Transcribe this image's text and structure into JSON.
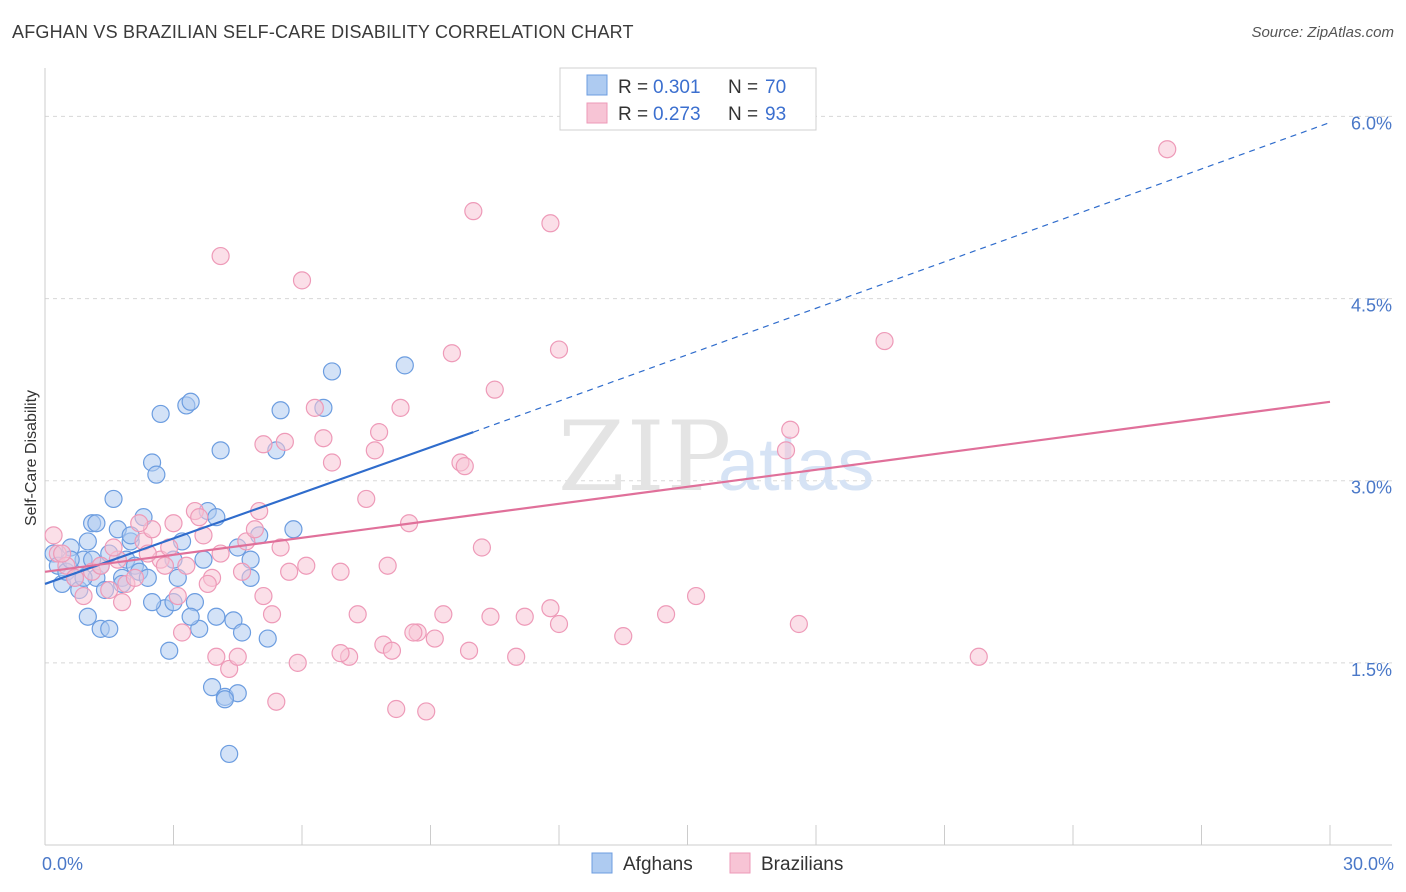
{
  "title": "AFGHAN VS BRAZILIAN SELF-CARE DISABILITY CORRELATION CHART",
  "source": "Source: ZipAtlas.com",
  "watermark": {
    "part1": "ZIP",
    "part2": "atlas"
  },
  "chart_data": {
    "type": "scatter",
    "title": "AFGHAN VS BRAZILIAN SELF-CARE DISABILITY CORRELATION CHART",
    "ylabel": "Self-Care Disability",
    "xlabel": "",
    "xlim": [
      0,
      30
    ],
    "ylim": [
      0,
      6.3
    ],
    "x_tick_labels": [
      {
        "value": 0,
        "label": "0.0%"
      },
      {
        "value": 30,
        "label": "30.0%"
      }
    ],
    "y_tick_labels": [
      {
        "value": 1.5,
        "label": "1.5%"
      },
      {
        "value": 3.0,
        "label": "3.0%"
      },
      {
        "value": 4.5,
        "label": "4.5%"
      },
      {
        "value": 6.0,
        "label": "6.0%"
      }
    ],
    "grid": true,
    "legend": {
      "position": "top-center",
      "entries": [
        {
          "r_label": "R =",
          "r_value": "0.301",
          "n_label": "N =",
          "n_value": "70"
        },
        {
          "r_label": "R =",
          "r_value": "0.273",
          "n_label": "N =",
          "n_value": "93"
        }
      ]
    },
    "series": [
      {
        "name": "Afghans",
        "color": "#6c9de0",
        "fill": "#aecbf1",
        "line_color": "#2f6ccc",
        "trend": {
          "x0": 0.0,
          "y0": 2.15,
          "x1": 10.0,
          "y1": 3.4,
          "dash_x1": 30.0,
          "dash_y1": 5.95
        },
        "points": [
          [
            0.2,
            2.4
          ],
          [
            0.3,
            2.3
          ],
          [
            0.4,
            2.15
          ],
          [
            0.5,
            2.25
          ],
          [
            0.6,
            2.45
          ],
          [
            0.7,
            2.2
          ],
          [
            0.8,
            2.1
          ],
          [
            0.9,
            2.35
          ],
          [
            1.0,
            2.5
          ],
          [
            1.1,
            2.65
          ],
          [
            1.2,
            2.2
          ],
          [
            1.3,
            2.3
          ],
          [
            1.4,
            2.1
          ],
          [
            1.5,
            2.4
          ],
          [
            1.6,
            2.85
          ],
          [
            1.7,
            2.6
          ],
          [
            1.8,
            2.2
          ],
          [
            1.9,
            2.35
          ],
          [
            2.0,
            2.5
          ],
          [
            2.1,
            2.3
          ],
          [
            2.2,
            2.25
          ],
          [
            2.3,
            2.7
          ],
          [
            2.4,
            2.2
          ],
          [
            2.5,
            3.15
          ],
          [
            2.6,
            3.05
          ],
          [
            2.7,
            3.55
          ],
          [
            2.8,
            1.95
          ],
          [
            2.9,
            1.6
          ],
          [
            3.0,
            2.35
          ],
          [
            3.1,
            2.2
          ],
          [
            3.2,
            2.5
          ],
          [
            3.3,
            3.62
          ],
          [
            3.4,
            3.65
          ],
          [
            3.5,
            2.0
          ],
          [
            3.6,
            1.78
          ],
          [
            3.7,
            2.35
          ],
          [
            3.8,
            2.75
          ],
          [
            3.9,
            1.3
          ],
          [
            4.0,
            2.7
          ],
          [
            4.1,
            3.25
          ],
          [
            4.2,
            1.22
          ],
          [
            4.3,
            0.75
          ],
          [
            4.4,
            1.85
          ],
          [
            4.5,
            1.25
          ],
          [
            4.6,
            1.75
          ],
          [
            4.8,
            2.35
          ],
          [
            5.0,
            2.55
          ],
          [
            4.2,
            1.2
          ],
          [
            4.0,
            1.88
          ],
          [
            3.4,
            1.88
          ],
          [
            1.3,
            1.78
          ],
          [
            1.2,
            2.65
          ],
          [
            1.5,
            1.78
          ],
          [
            1.0,
            1.88
          ],
          [
            0.6,
            2.35
          ],
          [
            5.5,
            3.58
          ],
          [
            5.4,
            3.25
          ],
          [
            5.8,
            2.6
          ],
          [
            6.5,
            3.6
          ],
          [
            6.7,
            3.9
          ],
          [
            8.4,
            3.95
          ],
          [
            4.8,
            2.2
          ],
          [
            5.2,
            1.7
          ],
          [
            1.8,
            2.15
          ],
          [
            2.5,
            2.0
          ],
          [
            2.0,
            2.55
          ],
          [
            0.9,
            2.2
          ],
          [
            1.1,
            2.35
          ],
          [
            3.0,
            2.0
          ],
          [
            4.5,
            2.45
          ]
        ]
      },
      {
        "name": "Brazilians",
        "color": "#ee9ab8",
        "fill": "#f7c4d5",
        "line_color": "#e0709a",
        "trend": {
          "x0": 0.0,
          "y0": 2.25,
          "x1": 30.0,
          "y1": 3.65
        },
        "points": [
          [
            0.2,
            2.55
          ],
          [
            0.3,
            2.4
          ],
          [
            0.5,
            2.3
          ],
          [
            0.7,
            2.2
          ],
          [
            0.9,
            2.05
          ],
          [
            1.1,
            2.25
          ],
          [
            1.3,
            2.3
          ],
          [
            1.5,
            2.1
          ],
          [
            1.7,
            2.35
          ],
          [
            1.9,
            2.15
          ],
          [
            2.1,
            2.2
          ],
          [
            2.3,
            2.5
          ],
          [
            2.5,
            2.6
          ],
          [
            2.7,
            2.35
          ],
          [
            2.9,
            2.45
          ],
          [
            3.1,
            2.05
          ],
          [
            3.3,
            2.3
          ],
          [
            3.5,
            2.75
          ],
          [
            3.7,
            2.55
          ],
          [
            3.9,
            2.2
          ],
          [
            4.1,
            2.4
          ],
          [
            4.3,
            1.45
          ],
          [
            4.5,
            1.55
          ],
          [
            4.7,
            2.5
          ],
          [
            4.9,
            2.6
          ],
          [
            5.1,
            2.05
          ],
          [
            5.3,
            1.9
          ],
          [
            5.5,
            2.45
          ],
          [
            5.7,
            2.25
          ],
          [
            5.9,
            1.5
          ],
          [
            6.1,
            2.3
          ],
          [
            6.3,
            3.6
          ],
          [
            6.5,
            3.35
          ],
          [
            6.7,
            3.15
          ],
          [
            6.9,
            2.25
          ],
          [
            7.1,
            1.55
          ],
          [
            7.3,
            1.9
          ],
          [
            7.5,
            2.85
          ],
          [
            7.7,
            3.25
          ],
          [
            7.9,
            1.65
          ],
          [
            8.1,
            1.6
          ],
          [
            8.3,
            3.6
          ],
          [
            8.5,
            2.65
          ],
          [
            8.7,
            1.75
          ],
          [
            8.9,
            1.1
          ],
          [
            9.1,
            1.7
          ],
          [
            9.3,
            1.9
          ],
          [
            9.5,
            4.05
          ],
          [
            9.7,
            3.15
          ],
          [
            9.9,
            1.6
          ],
          [
            4.1,
            4.85
          ],
          [
            6.0,
            4.65
          ],
          [
            10.0,
            5.22
          ],
          [
            11.8,
            5.12
          ],
          [
            12.0,
            4.08
          ],
          [
            10.5,
            3.75
          ],
          [
            10.2,
            2.45
          ],
          [
            9.8,
            3.12
          ],
          [
            11.2,
            1.88
          ],
          [
            11.8,
            1.95
          ],
          [
            12.0,
            1.82
          ],
          [
            11.0,
            1.55
          ],
          [
            10.4,
            1.88
          ],
          [
            13.5,
            1.72
          ],
          [
            14.5,
            1.9
          ],
          [
            15.2,
            2.05
          ],
          [
            17.4,
            3.42
          ],
          [
            17.3,
            3.25
          ],
          [
            17.6,
            1.82
          ],
          [
            19.6,
            4.15
          ],
          [
            21.8,
            1.55
          ],
          [
            26.2,
            5.73
          ],
          [
            3.0,
            2.65
          ],
          [
            3.6,
            2.7
          ],
          [
            2.8,
            2.3
          ],
          [
            5.0,
            2.75
          ],
          [
            5.6,
            3.32
          ],
          [
            5.1,
            3.3
          ],
          [
            7.8,
            3.4
          ],
          [
            8.0,
            2.3
          ],
          [
            4.6,
            2.25
          ],
          [
            3.2,
            1.75
          ],
          [
            2.2,
            2.65
          ],
          [
            1.6,
            2.45
          ],
          [
            2.4,
            2.4
          ],
          [
            4.0,
            1.55
          ],
          [
            5.4,
            1.18
          ],
          [
            8.2,
            1.12
          ],
          [
            6.9,
            1.58
          ],
          [
            3.8,
            2.15
          ],
          [
            1.8,
            2.0
          ],
          [
            0.4,
            2.4
          ],
          [
            8.6,
            1.75
          ]
        ]
      }
    ]
  }
}
